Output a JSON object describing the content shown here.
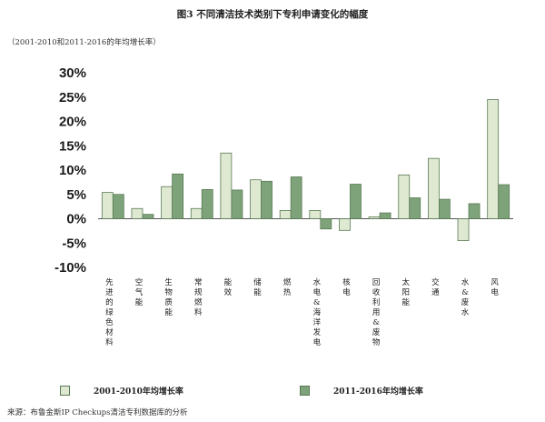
{
  "chart_data": {
    "type": "bar",
    "title": "图3 不同清洁技术类别下专利申请变化的幅度",
    "subtitle": "（2001-2010和2011-2016的年均增长率）",
    "categories": [
      "先进的绿色材料",
      "空气能",
      "生物质能",
      "常规燃料",
      "能效",
      "储能",
      "燃热",
      "水电&海洋发电",
      "核电",
      "回收利用&废物",
      "太阳能",
      "交通",
      "水&废水",
      "风电"
    ],
    "series": [
      {
        "name": "2001-2010年均增长率",
        "color": "#dfe9d2",
        "values": [
          5.4,
          2.1,
          6.6,
          2.1,
          13.5,
          8.0,
          1.7,
          1.7,
          -2.4,
          0.4,
          9.0,
          12.4,
          -4.5,
          24.5
        ]
      },
      {
        "name": "2011-2016年均增长率",
        "color": "#7ea37a",
        "values": [
          5.0,
          0.9,
          9.2,
          6.0,
          5.9,
          7.7,
          8.6,
          -2.1,
          7.1,
          1.2,
          4.3,
          4.0,
          3.1,
          7.0
        ]
      }
    ],
    "yticks": [
      "30%",
      "25%",
      "20%",
      "15%",
      "10%",
      "5%",
      "0%",
      "-5%",
      "-10%"
    ],
    "ylim": [
      -10,
      30
    ],
    "legend": "bottom"
  },
  "source": "来源：布鲁金斯IP Checkups清洁专利数据库的分析"
}
